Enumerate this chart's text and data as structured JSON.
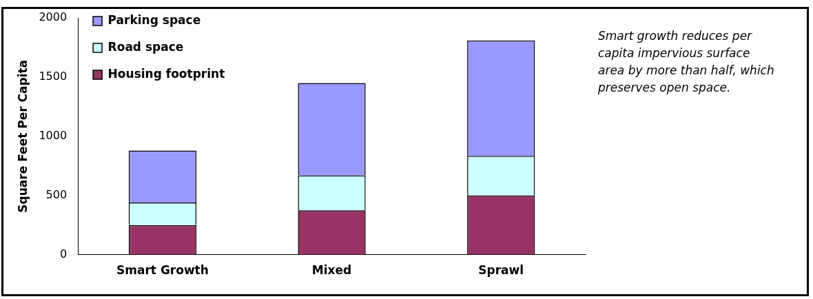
{
  "chart_data": {
    "type": "bar",
    "stacked": true,
    "ylabel": "Square Feet Per Capita",
    "categories": [
      "Smart Growth",
      "Mixed",
      "Sprawl"
    ],
    "series": [
      {
        "name": "Housing footprint",
        "color": "#993366",
        "values": [
          250,
          375,
          500
        ]
      },
      {
        "name": "Road space",
        "color": "#ccffff",
        "values": [
          190,
          295,
          335
        ]
      },
      {
        "name": "Parking space",
        "color": "#9999ff",
        "values": [
          440,
          780,
          975
        ]
      }
    ],
    "ylim": [
      0,
      2000
    ],
    "yticks": [
      0,
      500,
      1000,
      1500,
      2000
    ],
    "grid": false,
    "legend": "top left",
    "annotations": [
      "Smart growth reduces per capita impervious surface area by more than half, which preserves open space."
    ]
  }
}
